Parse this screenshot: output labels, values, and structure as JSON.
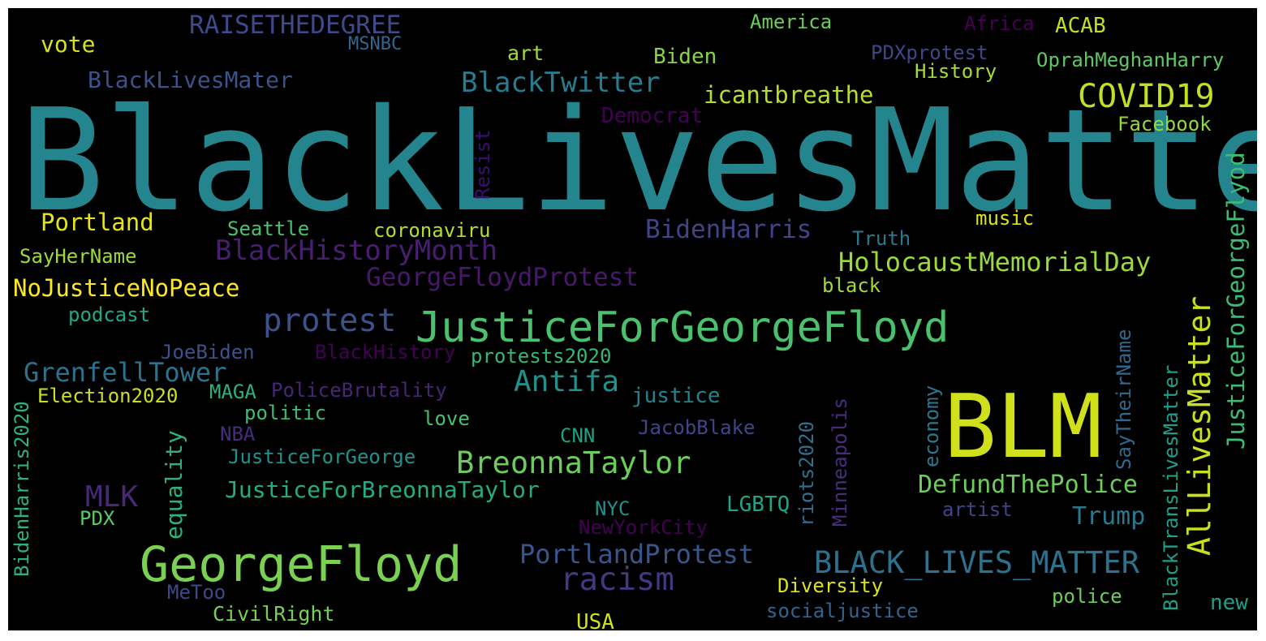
{
  "words": {
    "blacklivesmatter": {
      "text": "BlackLivesMatter",
      "color": "#25858e"
    },
    "blm": {
      "text": "BLM",
      "color": "#d0e11c"
    },
    "georgefloyd": {
      "text": "GeorgeFloyd",
      "color": "#7ad151"
    },
    "justiceforgeorgefloyd": {
      "text": "JusticeForGeorgeFloyd",
      "color": "#4ac16d"
    },
    "covid19": {
      "text": "COVID19",
      "color": "#c2df23"
    },
    "raisethedegree": {
      "text": "RAISETHEDEGREE",
      "color": "#3e4a89"
    },
    "vote": {
      "text": "vote",
      "color": "#d8e219"
    },
    "msnbc": {
      "text": "MSNBC",
      "color": "#31668e"
    },
    "art": {
      "text": "art",
      "color": "#a0da39"
    },
    "biden": {
      "text": "Biden",
      "color": "#86d549"
    },
    "america": {
      "text": "America",
      "color": "#6ccd5a"
    },
    "africa": {
      "text": "Africa",
      "color": "#440154"
    },
    "acab": {
      "text": "ACAB",
      "color": "#c2df23"
    },
    "pdxprotest": {
      "text": "PDXprotest",
      "color": "#3f4788"
    },
    "oprahmeghanharry": {
      "text": "OprahMeghanHarry",
      "color": "#5ec962"
    },
    "history": {
      "text": "History",
      "color": "#a5db36"
    },
    "blacklivesmater": {
      "text": "BlackLivesMater",
      "color": "#3b528b"
    },
    "blacktwitter": {
      "text": "BlackTwitter",
      "color": "#287c8e"
    },
    "icantbreathe": {
      "text": "icantbreathe",
      "color": "#b5de2b"
    },
    "democrat": {
      "text": "Democrat",
      "color": "#440154"
    },
    "facebook": {
      "text": "Facebook",
      "color": "#93d741"
    },
    "justiceforgeorgeflyod": {
      "text": "JusticeForGeorgeFlyod",
      "color": "#3dbc74"
    },
    "resist": {
      "text": "Resist",
      "color": "#3b0f70"
    },
    "portland": {
      "text": "Portland",
      "color": "#e5e419"
    },
    "seattle": {
      "text": "Seattle",
      "color": "#4ac16d"
    },
    "coronaviru": {
      "text": "coronaviru",
      "color": "#b5de2b"
    },
    "bidenharris": {
      "text": "BidenHarris",
      "color": "#414487"
    },
    "music": {
      "text": "music",
      "color": "#dde318"
    },
    "truth": {
      "text": "Truth",
      "color": "#2a788e"
    },
    "sayhername": {
      "text": "SayHerName",
      "color": "#9bd93c"
    },
    "blackhistorymonth": {
      "text": "BlackHistoryMonth",
      "color": "#481f70"
    },
    "holocaustmemorialday": {
      "text": "HolocaustMemorialDay",
      "color": "#9bd93c"
    },
    "georgefloydprotest": {
      "text": "GeorgeFloydProtest",
      "color": "#48186a"
    },
    "nojusticenopeace": {
      "text": "NoJusticeNoPeace",
      "color": "#fde725"
    },
    "black": {
      "text": "black",
      "color": "#a0da39"
    },
    "podcast": {
      "text": "podcast",
      "color": "#22a884"
    },
    "protest": {
      "text": "protest",
      "color": "#3b528b"
    },
    "alllivesmatter": {
      "text": "AllLivesMatter",
      "color": "#c8e020"
    },
    "joebiden": {
      "text": "JoeBiden",
      "color": "#3b528b"
    },
    "blackhistory": {
      "text": "BlackHistory",
      "color": "#440154"
    },
    "protests2020": {
      "text": "protests2020",
      "color": "#35b779"
    },
    "saytheirname": {
      "text": "SayTheirName",
      "color": "#31688e"
    },
    "blacktranslivesmatter": {
      "text": "BlackTransLivesMatter",
      "color": "#1f9e89"
    },
    "grenfelltower": {
      "text": "GrenfellTower",
      "color": "#2c728e"
    },
    "antifa": {
      "text": "Antifa",
      "color": "#21918c"
    },
    "bidenharris2020": {
      "text": "BidenHarris2020",
      "color": "#2db27d"
    },
    "election2020": {
      "text": "Election2020",
      "color": "#c8e020"
    },
    "maga": {
      "text": "MAGA",
      "color": "#2db27d"
    },
    "policebrutality": {
      "text": "PoliceBrutality",
      "color": "#482677"
    },
    "justice": {
      "text": "justice",
      "color": "#26828e"
    },
    "economy": {
      "text": "economy",
      "color": "#2a788e"
    },
    "politic": {
      "text": "politic",
      "color": "#3dbc74"
    },
    "love": {
      "text": "love",
      "color": "#4ac16d"
    },
    "minneapolis": {
      "text": "Minneapolis",
      "color": "#472d7b"
    },
    "riots2020": {
      "text": "riots2020",
      "color": "#2e6f8e"
    },
    "equality": {
      "text": "equality",
      "color": "#2db27d"
    },
    "nba": {
      "text": "NBA",
      "color": "#472d7b"
    },
    "cnn": {
      "text": "CNN",
      "color": "#1fa187"
    },
    "jacobblake": {
      "text": "JacobBlake",
      "color": "#414487"
    },
    "justiceforgeorge": {
      "text": "JusticeForGeorge",
      "color": "#21918c"
    },
    "breonnataylor": {
      "text": "BreonnaTaylor",
      "color": "#6ccd5a"
    },
    "mlk": {
      "text": "MLK",
      "color": "#482878"
    },
    "justiceforbreonnataylor": {
      "text": "JusticeForBreonnaTaylor",
      "color": "#25ac82"
    },
    "defundthepolice": {
      "text": "DefundThePolice",
      "color": "#6ccd5a"
    },
    "nyc": {
      "text": "NYC",
      "color": "#21918c"
    },
    "lgbtq": {
      "text": "LGBTQ",
      "color": "#20a386"
    },
    "artist": {
      "text": "artist",
      "color": "#414487"
    },
    "trump": {
      "text": "Trump",
      "color": "#2a788e"
    },
    "pdx": {
      "text": "PDX",
      "color": "#5ec962"
    },
    "newyorkcity": {
      "text": "NewYorkCity",
      "color": "#440154"
    },
    "portlandprotest": {
      "text": "PortlandProtest",
      "color": "#39568c"
    },
    "black_lives_matter": {
      "text": "BLACK_LIVES_MATTER",
      "color": "#2c728e"
    },
    "racism": {
      "text": "racism",
      "color": "#453781"
    },
    "metoo": {
      "text": "MeToo",
      "color": "#3e4a89"
    },
    "diversity": {
      "text": "Diversity",
      "color": "#dde318"
    },
    "police": {
      "text": "police",
      "color": "#6ccd5a"
    },
    "new": {
      "text": "new",
      "color": "#1f9e89"
    },
    "civilright": {
      "text": "CivilRight",
      "color": "#75d054"
    },
    "usa": {
      "text": "USA",
      "color": "#d0e11c"
    },
    "socialjustice": {
      "text": "socialjustice",
      "color": "#33638d"
    }
  }
}
